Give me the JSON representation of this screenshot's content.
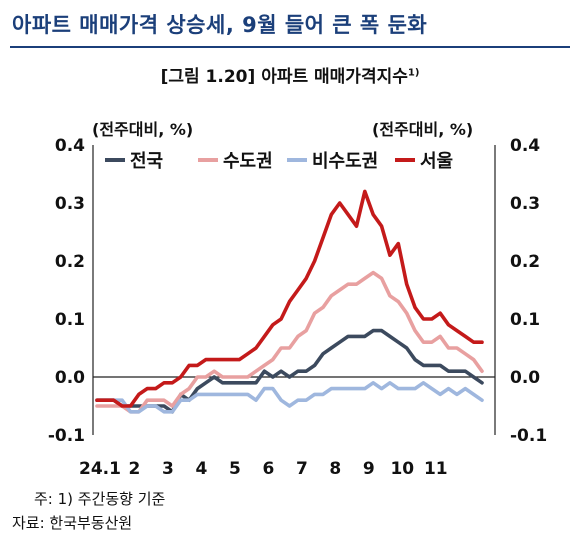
{
  "headline": "아파트 매매가격 상승세, 9월 들어 큰 폭 둔화",
  "figure": {
    "label": "[그림 1.20] 아파트 매매가격지수",
    "footnote_mark": "1)"
  },
  "unit_left": "(전주대비, %)",
  "unit_right": "(전주대비, %)",
  "footnote": "주: 1) 주간동향 기준",
  "source": "자료: 한국부동산원",
  "chart_data": {
    "type": "line",
    "title": "[그림 1.20] 아파트 매매가격지수",
    "ylabel": "(전주대비, %)",
    "ylim": [
      -0.1,
      0.4
    ],
    "yticks": [
      "-0.1",
      "0.0",
      "0.1",
      "0.2",
      "0.3",
      "0.4"
    ],
    "xticks": [
      "24.1",
      "2",
      "3",
      "4",
      "5",
      "6",
      "7",
      "8",
      "9",
      "10",
      "11"
    ],
    "x_tick_week_index": [
      0,
      4,
      8,
      12,
      16,
      20,
      24,
      28,
      32,
      36,
      40
    ],
    "legend_position": "top",
    "series": [
      {
        "name": "전국",
        "color": "#3c4a5e",
        "values": [
          -0.04,
          -0.04,
          -0.04,
          -0.05,
          -0.05,
          -0.05,
          -0.05,
          -0.05,
          -0.05,
          -0.06,
          -0.03,
          -0.04,
          -0.02,
          -0.01,
          0.0,
          -0.01,
          -0.01,
          -0.01,
          -0.01,
          -0.01,
          0.01,
          0.0,
          0.01,
          0.0,
          0.01,
          0.01,
          0.02,
          0.04,
          0.05,
          0.06,
          0.07,
          0.07,
          0.07,
          0.08,
          0.08,
          0.07,
          0.06,
          0.05,
          0.03,
          0.02,
          0.02,
          0.02,
          0.01,
          0.01,
          0.01,
          0.0,
          -0.01
        ]
      },
      {
        "name": "수도권",
        "color": "#e8a0a0",
        "values": [
          -0.05,
          -0.05,
          -0.05,
          -0.05,
          -0.06,
          -0.06,
          -0.04,
          -0.04,
          -0.04,
          -0.05,
          -0.03,
          -0.02,
          0.0,
          0.0,
          0.01,
          0.0,
          0.0,
          0.0,
          0.0,
          0.01,
          0.02,
          0.03,
          0.05,
          0.05,
          0.07,
          0.08,
          0.11,
          0.12,
          0.14,
          0.15,
          0.16,
          0.16,
          0.17,
          0.18,
          0.17,
          0.14,
          0.13,
          0.11,
          0.08,
          0.06,
          0.06,
          0.07,
          0.05,
          0.05,
          0.04,
          0.03,
          0.01
        ]
      },
      {
        "name": "비수도권",
        "color": "#9fb7de",
        "values": [
          -0.04,
          -0.04,
          -0.04,
          -0.04,
          -0.06,
          -0.06,
          -0.05,
          -0.05,
          -0.06,
          -0.06,
          -0.04,
          -0.04,
          -0.03,
          -0.03,
          -0.03,
          -0.03,
          -0.03,
          -0.03,
          -0.03,
          -0.04,
          -0.02,
          -0.02,
          -0.04,
          -0.05,
          -0.04,
          -0.04,
          -0.03,
          -0.03,
          -0.02,
          -0.02,
          -0.02,
          -0.02,
          -0.02,
          -0.01,
          -0.02,
          -0.01,
          -0.02,
          -0.02,
          -0.02,
          -0.01,
          -0.02,
          -0.03,
          -0.02,
          -0.03,
          -0.02,
          -0.03,
          -0.04
        ]
      },
      {
        "name": "서울",
        "color": "#c41a1a",
        "values": [
          -0.04,
          -0.04,
          -0.04,
          -0.05,
          -0.05,
          -0.03,
          -0.02,
          -0.02,
          -0.01,
          -0.01,
          0.0,
          0.02,
          0.02,
          0.03,
          0.03,
          0.03,
          0.03,
          0.03,
          0.04,
          0.05,
          0.07,
          0.09,
          0.1,
          0.13,
          0.15,
          0.17,
          0.2,
          0.24,
          0.28,
          0.3,
          0.28,
          0.26,
          0.32,
          0.28,
          0.26,
          0.21,
          0.23,
          0.16,
          0.12,
          0.1,
          0.1,
          0.11,
          0.09,
          0.08,
          0.07,
          0.06,
          0.06
        ]
      }
    ]
  }
}
